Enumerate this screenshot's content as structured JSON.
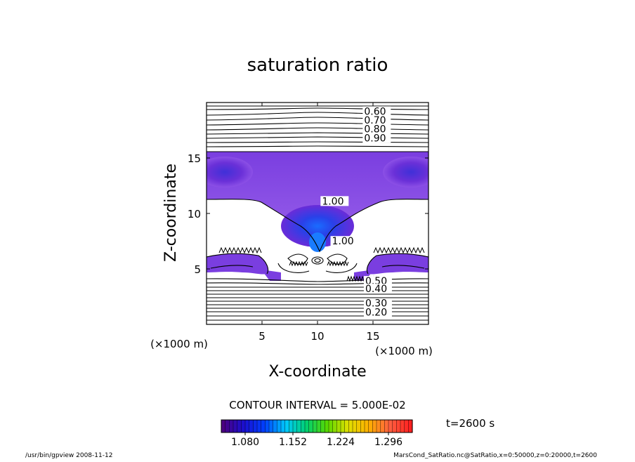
{
  "chart_data": {
    "type": "contour",
    "title": "saturation ratio",
    "xlabel": "X-coordinate",
    "ylabel": "Z-coordinate",
    "x_unit": "(×1000 m)",
    "y_unit": "(×1000 m)",
    "xlim": [
      0,
      20
    ],
    "ylim": [
      0,
      20
    ],
    "x_ticks": [
      5,
      10,
      15
    ],
    "y_ticks": [
      5,
      10,
      15
    ],
    "contour_labels": [
      {
        "text": "0.60",
        "x": 14.2,
        "y": 18.9
      },
      {
        "text": "0.70",
        "x": 14.2,
        "y": 18.1
      },
      {
        "text": "0.80",
        "x": 14.2,
        "y": 17.3
      },
      {
        "text": "0.90",
        "x": 14.2,
        "y": 16.5
      },
      {
        "text": "1.00",
        "x": 10.4,
        "y": 10.8
      },
      {
        "text": "1.00",
        "x": 11.3,
        "y": 7.2
      },
      {
        "text": "0.50",
        "x": 14.3,
        "y": 3.6
      },
      {
        "text": "0.40",
        "x": 14.3,
        "y": 2.9
      },
      {
        "text": "0.30",
        "x": 14.3,
        "y": 1.6
      },
      {
        "text": "0.20",
        "x": 14.3,
        "y": 0.8
      }
    ],
    "upper_contour_levels": [
      0.6,
      0.7,
      0.8,
      0.9
    ],
    "contour_interval_text": "CONTOUR INTERVAL = 5.000E-02",
    "colorbar": {
      "min": 1.044,
      "max": 1.332,
      "tick_labels": [
        "1.080",
        "1.152",
        "1.224",
        "1.296"
      ],
      "tick_values": [
        1.08,
        1.152,
        1.224,
        1.296
      ],
      "colors": [
        "#4b0082",
        "#1a10d0",
        "#0040ff",
        "#00c8ff",
        "#00d070",
        "#58d800",
        "#e0e000",
        "#ffb000",
        "#ff6040",
        "#ff2020"
      ]
    },
    "shading_colors": {
      "deep": "#1a3cff",
      "mid": "#5a2ad0",
      "edge": "#8a4ae0"
    },
    "time_label": "t=2600 s"
  },
  "footer": {
    "left": "/usr/bin/gpview   2008-11-12",
    "right": "MarsCond_SatRatio.nc@SatRatio,x=0:50000,z=0:20000,t=2600"
  }
}
